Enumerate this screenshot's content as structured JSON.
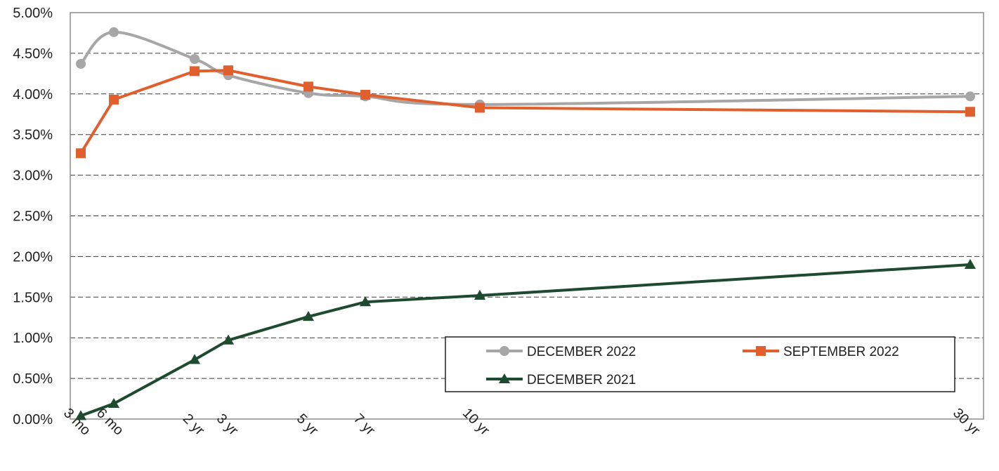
{
  "chart_data": {
    "type": "line",
    "title": "",
    "xlabel": "",
    "ylabel": "",
    "ylim": [
      0,
      5
    ],
    "grid": "horizontal dashed",
    "legend_position": "bottom-right",
    "x": [
      0.25,
      0.5,
      2,
      3,
      5,
      7,
      10,
      30
    ],
    "x_tick_labels": [
      "3 mo",
      "6 mo",
      "2 yr",
      "3 yr",
      "5 yr",
      "7 yr",
      "10 yr",
      "30 yr"
    ],
    "y_ticks": [
      0,
      0.5,
      1,
      1.5,
      2,
      2.5,
      3,
      3.5,
      4,
      4.5,
      5
    ],
    "y_tick_labels": [
      "0.00%",
      "0.50%",
      "1.00%",
      "1.50%",
      "2.00%",
      "2.50%",
      "3.00%",
      "3.50%",
      "4.00%",
      "4.50%",
      "5.00%"
    ],
    "series": [
      {
        "name": "DECEMBER 2022",
        "color": "#a6a6a6",
        "marker": "circle",
        "smooth": true,
        "values": [
          4.37,
          4.76,
          4.43,
          4.23,
          4.01,
          3.97,
          3.87,
          3.97
        ]
      },
      {
        "name": "SEPTEMBER 2022",
        "color": "#e15f2d",
        "marker": "square",
        "smooth": false,
        "values": [
          3.27,
          3.93,
          4.28,
          4.29,
          4.09,
          3.99,
          3.83,
          3.78
        ]
      },
      {
        "name": "DECEMBER 2021",
        "color": "#1e4a30",
        "marker": "triangle",
        "smooth": false,
        "values": [
          0.04,
          0.19,
          0.73,
          0.97,
          1.26,
          1.44,
          1.52,
          1.9
        ]
      }
    ]
  }
}
